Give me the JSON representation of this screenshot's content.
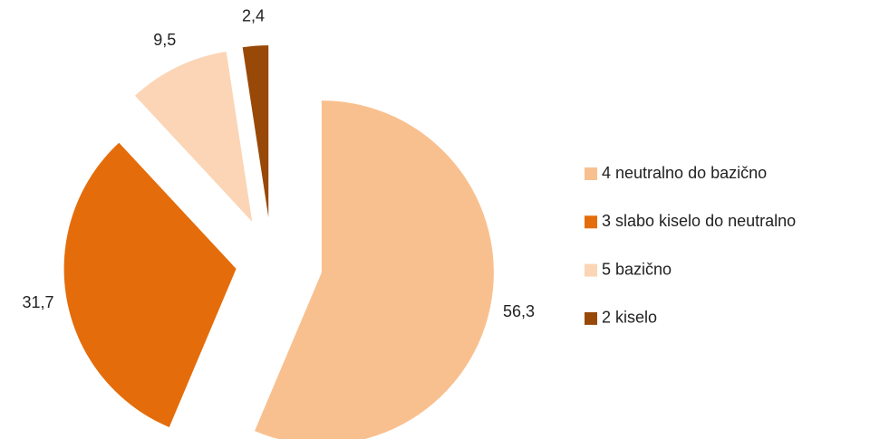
{
  "chart_data": {
    "type": "pie",
    "categories": [
      "4 neutralno do bazično",
      "3 slabo kiselo do neutralno",
      "5 bazično",
      "2 kiselo"
    ],
    "values": [
      56.3,
      31.7,
      9.5,
      2.4
    ],
    "value_labels": [
      "56,3",
      "31,7",
      "9,5",
      "2,4"
    ],
    "colors": [
      "#f9c08f",
      "#e46c0a",
      "#fbd5b5",
      "#984807"
    ],
    "legend": "right"
  }
}
